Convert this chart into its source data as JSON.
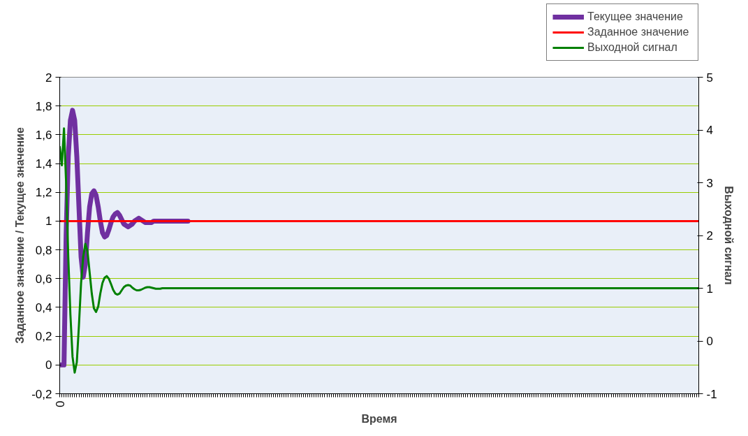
{
  "chart_data": {
    "type": "line",
    "xlabel": "Время",
    "ylabel": "Заданное значение / Текущее значение",
    "y2label": "Выходной сигнал",
    "ylim": [
      -0.2,
      2
    ],
    "y2lim": [
      -1,
      5
    ],
    "yticks": [
      {
        "value": -0.2,
        "label": "-0,2"
      },
      0,
      {
        "value": 0.2,
        "label": "0,2"
      },
      {
        "value": 0.4,
        "label": "0,4"
      },
      {
        "value": 0.6,
        "label": "0,6"
      },
      {
        "value": 0.8,
        "label": "0,8"
      },
      1,
      {
        "value": 1.2,
        "label": "1,2"
      },
      {
        "value": 1.4,
        "label": "1,4"
      },
      {
        "value": 1.6,
        "label": "1,6"
      },
      {
        "value": 1.8,
        "label": "1,8"
      },
      2
    ],
    "y2ticks": [
      -1,
      0,
      1,
      2,
      3,
      4,
      5
    ],
    "categories": [
      "0",
      null,
      null,
      null,
      null,
      null,
      null,
      null,
      null,
      null,
      null,
      null,
      null,
      null,
      null,
      null,
      null,
      null,
      null,
      null,
      null,
      null,
      null,
      null,
      null,
      null,
      null,
      null,
      null,
      null,
      null,
      null,
      null,
      null,
      null,
      null,
      null,
      null,
      null,
      null,
      null,
      null,
      null,
      null,
      null,
      null,
      null,
      null,
      null,
      null,
      null,
      null,
      null,
      null,
      null,
      null,
      null,
      null,
      null,
      null,
      null,
      null,
      null,
      null,
      null,
      null,
      null,
      null,
      null,
      null,
      null,
      null,
      null,
      null,
      null,
      null,
      null,
      null,
      null,
      null,
      null,
      null,
      null,
      null,
      null,
      null,
      null,
      null,
      null,
      null,
      null,
      null,
      null,
      null,
      null,
      null,
      null,
      null,
      null,
      null,
      null,
      null,
      null,
      null,
      null,
      null,
      null,
      null,
      null,
      null,
      null,
      null,
      null,
      null,
      null,
      null,
      null,
      null,
      null,
      null,
      null,
      null,
      null,
      null,
      null,
      null,
      null,
      null,
      null,
      null,
      null,
      null,
      null,
      null,
      null,
      null,
      null,
      null,
      null,
      null,
      null,
      null,
      null,
      null,
      null,
      null,
      null,
      null,
      null,
      null,
      null,
      null,
      null,
      null,
      null,
      null,
      null,
      null,
      null,
      null,
      null,
      null,
      null,
      null,
      null,
      null,
      null,
      null,
      null,
      null,
      null,
      null,
      null,
      null,
      null,
      null,
      null,
      null,
      null,
      null,
      null,
      null,
      null,
      null,
      null,
      null,
      null,
      null,
      null,
      null,
      null,
      null,
      null,
      null,
      null,
      null,
      null,
      null,
      null,
      null,
      null,
      null,
      null,
      null,
      null,
      null,
      null,
      null,
      null,
      null,
      null,
      null,
      null,
      null,
      null,
      null,
      null,
      null,
      null,
      null,
      null,
      null,
      null,
      null,
      null,
      null,
      null,
      null,
      null,
      null,
      null,
      null,
      null,
      null,
      null,
      null,
      null,
      null,
      null,
      null,
      null,
      null,
      null,
      null,
      null,
      null,
      null,
      null,
      null,
      null,
      null,
      null,
      null,
      null,
      null,
      null,
      null,
      null,
      null,
      null,
      null,
      null,
      null,
      null,
      null,
      null,
      null,
      null,
      null,
      null,
      null,
      null,
      null,
      null,
      null,
      null,
      null,
      null,
      null,
      null,
      null,
      null,
      null,
      null,
      null,
      null,
      null,
      null,
      null,
      null,
      null,
      null,
      null,
      null,
      null,
      null,
      null,
      null,
      null,
      null
    ],
    "grid": "y",
    "legend": "top right",
    "series": [
      {
        "name": "Текущее значение",
        "color": "#7030a0",
        "values": [
          0,
          0,
          0,
          0.9,
          1.45,
          1.7,
          1.77,
          1.7,
          1.45,
          1.1,
          0.75,
          0.61,
          0.7,
          0.92,
          1.1,
          1.19,
          1.21,
          1.18,
          1.1,
          1,
          0.92,
          0.89,
          0.9,
          0.94,
          0.99,
          1.03,
          1.05,
          1.06,
          1.04,
          1.01,
          0.98,
          0.97,
          0.96,
          0.97,
          0.98,
          1,
          1.01,
          1.02,
          1.01,
          1,
          0.99,
          0.99,
          0.99,
          0.99,
          1,
          1,
          1,
          1,
          1,
          1,
          1,
          1,
          1,
          1,
          1,
          1,
          1,
          1,
          1,
          1,
          1,
          null,
          null,
          null,
          null,
          null,
          null,
          null,
          null,
          null,
          null,
          null,
          null,
          null,
          null,
          null,
          null,
          null,
          null,
          null,
          null,
          null,
          null,
          null,
          null,
          null,
          null,
          null,
          null,
          null,
          null,
          null,
          null,
          null,
          null,
          null,
          null,
          null,
          null,
          null,
          null,
          null,
          null,
          null,
          null,
          null,
          null,
          null,
          null,
          null,
          null,
          null,
          null,
          null,
          null,
          null,
          null,
          null,
          null,
          null,
          null,
          null,
          null,
          null,
          null,
          null,
          null,
          null,
          null,
          null,
          null,
          null,
          null,
          null,
          null,
          null,
          null,
          null,
          null,
          null,
          null,
          null,
          null,
          null,
          null,
          null,
          null,
          null,
          null,
          null,
          null,
          null,
          null,
          null,
          null,
          null,
          null,
          null,
          null,
          null,
          null,
          null,
          null,
          null,
          null,
          null,
          null,
          null,
          null,
          null,
          null,
          null,
          null,
          null,
          null,
          null,
          null,
          null,
          null,
          null,
          null,
          null,
          null,
          null,
          null,
          null,
          null,
          null,
          null,
          null,
          null,
          null,
          null,
          null,
          null,
          null,
          null,
          null,
          null,
          null,
          null,
          null,
          null,
          null,
          null,
          null,
          null,
          null,
          null,
          null,
          null,
          null,
          null,
          null,
          null,
          null,
          null,
          null,
          null,
          null,
          null,
          null,
          null,
          null,
          null,
          null,
          null,
          null,
          null,
          null,
          null,
          null,
          null,
          null,
          null,
          null,
          null,
          null,
          null,
          null,
          null,
          null,
          null,
          null,
          null,
          null,
          null,
          null,
          null,
          null,
          null,
          null,
          null,
          null,
          null,
          null,
          null,
          null,
          null,
          null,
          null,
          null,
          null,
          null,
          null,
          null,
          null,
          null,
          null,
          null,
          null,
          null,
          null,
          null,
          null,
          null,
          null,
          null,
          null,
          null,
          null,
          null,
          null,
          null,
          null,
          null,
          null,
          null,
          null,
          null,
          null,
          null,
          null,
          null,
          null,
          null,
          null,
          null,
          null,
          null
        ]
      },
      {
        "name": "Заданное значение",
        "color": "#ff0000",
        "values": [
          1,
          1,
          1,
          1,
          1,
          1,
          1,
          1,
          1,
          1,
          1,
          1,
          1,
          1,
          1,
          1,
          1,
          1,
          1,
          1,
          1,
          1,
          1,
          1,
          1,
          1,
          1,
          1,
          1,
          1,
          1,
          1,
          1,
          1,
          1,
          1,
          1,
          1,
          1,
          1,
          1,
          1,
          1,
          1,
          1,
          1,
          1,
          1,
          1,
          1,
          1,
          1,
          1,
          1,
          1,
          1,
          1,
          1,
          1,
          1,
          1,
          1,
          1,
          1,
          1,
          1,
          1,
          1,
          1,
          1,
          1,
          1,
          1,
          1,
          1,
          1,
          1,
          1,
          1,
          1,
          1,
          1,
          1,
          1,
          1,
          1,
          1,
          1,
          1,
          1,
          1,
          1,
          1,
          1,
          1,
          1,
          1,
          1,
          1,
          1,
          1,
          1,
          1,
          1,
          1,
          1,
          1,
          1,
          1,
          1,
          1,
          1,
          1,
          1,
          1,
          1,
          1,
          1,
          1,
          1,
          1,
          1,
          1,
          1,
          1,
          1,
          1,
          1,
          1,
          1,
          1,
          1,
          1,
          1,
          1,
          1,
          1,
          1,
          1,
          1,
          1,
          1,
          1,
          1,
          1,
          1,
          1,
          1,
          1,
          1,
          1,
          1,
          1,
          1,
          1,
          1,
          1,
          1,
          1,
          1,
          1,
          1,
          1,
          1,
          1,
          1,
          1,
          1,
          1,
          1,
          1,
          1,
          1,
          1,
          1,
          1,
          1,
          1,
          1,
          1,
          1,
          1,
          1,
          1,
          1,
          1,
          1,
          1,
          1,
          1,
          1,
          1,
          1,
          1,
          1,
          1,
          1,
          1,
          1,
          1,
          1,
          1,
          1,
          1,
          1,
          1,
          1,
          1,
          1,
          1,
          1,
          1,
          1,
          1,
          1,
          1,
          1,
          1,
          1,
          1,
          1,
          1,
          1,
          1,
          1,
          1,
          1,
          1,
          1,
          1,
          1,
          1,
          1,
          1,
          1,
          1,
          1,
          1,
          1,
          1,
          1,
          1,
          1,
          1,
          1,
          1,
          1,
          1,
          1,
          1,
          1,
          1,
          1,
          1,
          1,
          1,
          1,
          1,
          1,
          1,
          1,
          1,
          1,
          1,
          1,
          1,
          1,
          1,
          1,
          1,
          1,
          1,
          1,
          1,
          1,
          1,
          1,
          1,
          1,
          1,
          1,
          1,
          1,
          1,
          1,
          1,
          1,
          1,
          1,
          1,
          1,
          1,
          1,
          1,
          1,
          1,
          1,
          1,
          1,
          1
        ]
      },
      {
        "name": "Выходной сигнал",
        "color": "#008000",
        "axis": "y2",
        "values": [
          3.68,
          3.33,
          4.03,
          3,
          1.6,
          0.5,
          -0.3,
          -0.6,
          -0.4,
          0.3,
          1.1,
          1.6,
          1.84,
          1.7,
          1.3,
          0.9,
          0.62,
          0.55,
          0.65,
          0.9,
          1.1,
          1.2,
          1.23,
          1.18,
          1.08,
          0.97,
          0.9,
          0.88,
          0.9,
          0.96,
          1.02,
          1.05,
          1.06,
          1.05,
          1.01,
          0.98,
          0.96,
          0.96,
          0.97,
          0.99,
          1.01,
          1.02,
          1.02,
          1.01,
          1,
          0.99,
          0.99,
          0.99,
          1,
          1,
          1,
          1,
          1,
          1,
          1,
          1,
          1,
          1,
          1,
          1,
          1,
          1,
          1,
          1,
          1,
          1,
          1,
          1,
          1,
          1,
          1,
          1,
          1,
          1,
          1,
          1,
          1,
          1,
          1,
          1,
          1,
          1,
          1,
          1,
          1,
          1,
          1,
          1,
          1,
          1,
          1,
          1,
          1,
          1,
          1,
          1,
          1,
          1,
          1,
          1,
          1,
          1,
          1,
          1,
          1,
          1,
          1,
          1,
          1,
          1,
          1,
          1,
          1,
          1,
          1,
          1,
          1,
          1,
          1,
          1,
          1,
          1,
          1,
          1,
          1,
          1,
          1,
          1,
          1,
          1,
          1,
          1,
          1,
          1,
          1,
          1,
          1,
          1,
          1,
          1,
          1,
          1,
          1,
          1,
          1,
          1,
          1,
          1,
          1,
          1,
          1,
          1,
          1,
          1,
          1,
          1,
          1,
          1,
          1,
          1,
          1,
          1,
          1,
          1,
          1,
          1,
          1,
          1,
          1,
          1,
          1,
          1,
          1,
          1,
          1,
          1,
          1,
          1,
          1,
          1,
          1,
          1,
          1,
          1,
          1,
          1,
          1,
          1,
          1,
          1,
          1,
          1,
          1,
          1,
          1,
          1,
          1,
          1,
          1,
          1,
          1,
          1,
          1,
          1,
          1,
          1,
          1,
          1,
          1,
          1,
          1,
          1,
          1,
          1,
          1,
          1,
          1,
          1,
          1,
          1,
          1,
          1,
          1,
          1,
          1,
          1,
          1,
          1,
          1,
          1,
          1,
          1,
          1,
          1,
          1,
          1,
          1,
          1,
          1,
          1,
          1,
          1,
          1,
          1,
          1,
          1,
          1,
          1,
          1,
          1,
          1,
          1,
          1,
          1,
          1,
          1,
          1,
          1,
          1,
          1,
          1,
          1,
          1,
          1,
          1,
          1,
          1,
          1,
          1,
          1,
          1,
          1,
          1,
          1,
          1,
          1,
          1,
          1,
          1,
          1,
          1,
          1,
          1,
          1,
          1,
          1,
          1,
          1,
          1,
          1,
          1,
          1,
          1,
          1,
          1,
          1,
          1,
          1,
          1,
          1
        ]
      }
    ]
  }
}
